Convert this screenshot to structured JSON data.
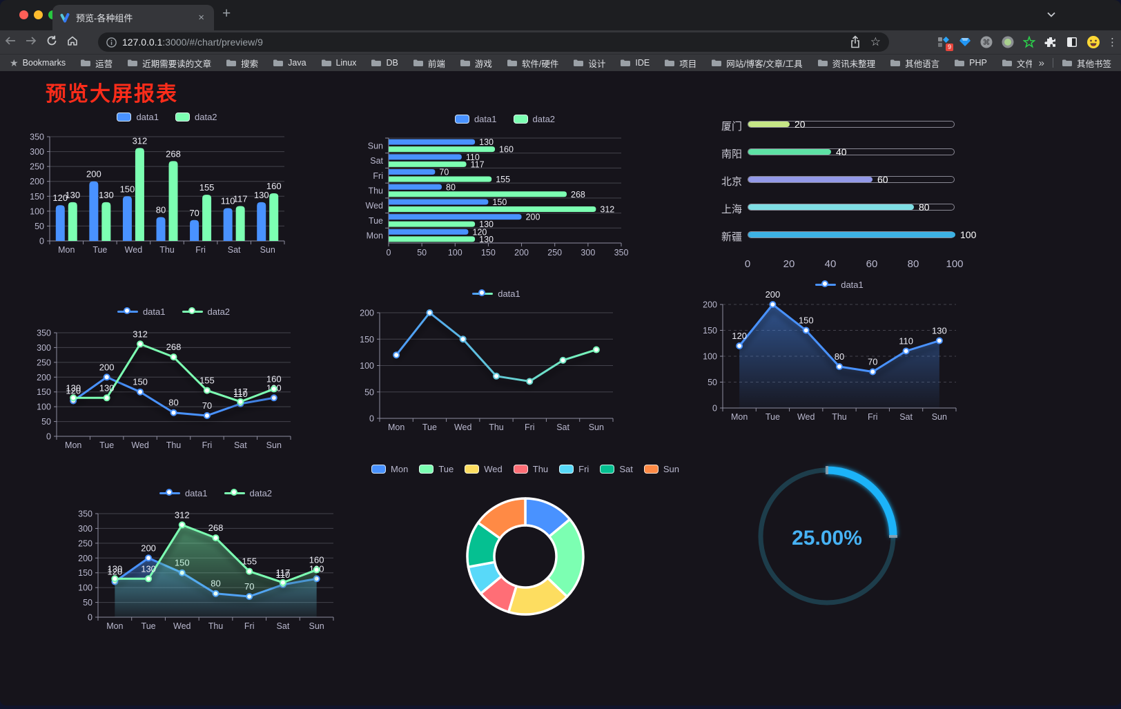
{
  "browser": {
    "tab_title": "预览-各种组件",
    "close_glyph": "×",
    "new_tab_glyph": "+",
    "url_host": "127.0.0.1",
    "url_rest": ":3000/#/chart/preview/9",
    "bookmarks_root": "Bookmarks",
    "bookmarks": [
      "运营",
      "近期需要读的文章",
      "搜索",
      "Java",
      "Linux",
      "DB",
      "前端",
      "游戏",
      "软件/硬件",
      "设计",
      "IDE",
      "项目",
      "网站/博客/文章/工具",
      "资讯未整理",
      "其他语言",
      "PHP",
      "文件服务器"
    ],
    "bookmarks_overflow_glyph": "»",
    "other_bookmarks": "其他书签",
    "extension_badge": "9"
  },
  "page": {
    "title": "预览大屏报表",
    "title_color": "#fb2c1a"
  },
  "palette": {
    "blue": "#4992ff",
    "green": "#7cffb2",
    "yellow": "#fddd60",
    "red": "#ff6e76",
    "lightblue": "#58d9f9",
    "teal": "#05c091",
    "orange": "#ff8a45",
    "axis_text": "#b9b8ce",
    "grid_line": "#44434d",
    "axis_line": "#8f8ea0",
    "value_label": "#ececf4"
  },
  "chart_data": [
    {
      "id": "bar-vertical",
      "type": "bar",
      "categories": [
        "Mon",
        "Tue",
        "Wed",
        "Thu",
        "Fri",
        "Sat",
        "Sun"
      ],
      "series": [
        {
          "name": "data1",
          "color": "#4992ff",
          "values": [
            120,
            200,
            150,
            80,
            70,
            110,
            130
          ]
        },
        {
          "name": "data2",
          "color": "#7cffb2",
          "values": [
            130,
            130,
            312,
            268,
            155,
            117,
            160
          ]
        }
      ],
      "ylim": [
        0,
        350
      ],
      "ytick": 50,
      "labels": true,
      "legend_position": "top",
      "grid": true
    },
    {
      "id": "bar-horizontal",
      "type": "bar",
      "orientation": "horizontal",
      "categories": [
        "Mon",
        "Tue",
        "Wed",
        "Thu",
        "Fri",
        "Sat",
        "Sun"
      ],
      "series": [
        {
          "name": "data1",
          "color": "#4992ff",
          "values": [
            120,
            200,
            150,
            80,
            70,
            110,
            130
          ]
        },
        {
          "name": "data2",
          "color": "#7cffb2",
          "values": [
            130,
            130,
            312,
            268,
            155,
            117,
            160
          ]
        }
      ],
      "xlim": [
        0,
        350
      ],
      "xtick": 50,
      "labels": true,
      "legend_position": "top",
      "grid": true
    },
    {
      "id": "progress",
      "type": "bar",
      "style": "progress-pills",
      "rows": [
        {
          "label": "厦门",
          "value": 20,
          "color": "#c6e786"
        },
        {
          "label": "南阳",
          "value": 40,
          "color": "#5ee2a5"
        },
        {
          "label": "北京",
          "value": 60,
          "color": "#9399e8"
        },
        {
          "label": "上海",
          "value": 80,
          "color": "#7edee4"
        },
        {
          "label": "新疆",
          "value": 100,
          "color": "#3cb1e3"
        }
      ],
      "xlim": [
        0,
        100
      ],
      "xticks": [
        0,
        20,
        40,
        60,
        80,
        100
      ]
    },
    {
      "id": "line-two",
      "type": "line",
      "categories": [
        "Mon",
        "Tue",
        "Wed",
        "Thu",
        "Fri",
        "Sat",
        "Sun"
      ],
      "series": [
        {
          "name": "data1",
          "color": "#4992ff",
          "values": [
            120,
            200,
            150,
            80,
            70,
            110,
            130
          ]
        },
        {
          "name": "data2",
          "color": "#7cffb2",
          "values": [
            130,
            130,
            312,
            268,
            155,
            117,
            160
          ]
        }
      ],
      "ylim": [
        0,
        350
      ],
      "ytick": 50,
      "labels": true,
      "markers": true,
      "legend_position": "top",
      "grid": true
    },
    {
      "id": "line-gradient",
      "type": "line",
      "categories": [
        "Mon",
        "Tue",
        "Wed",
        "Thu",
        "Fri",
        "Sat",
        "Sun"
      ],
      "series": [
        {
          "name": "data1",
          "gradient": [
            "#4992ff",
            "#7cffb2"
          ],
          "values": [
            120,
            200,
            150,
            80,
            70,
            110,
            130
          ]
        }
      ],
      "ylim": [
        0,
        200
      ],
      "ytick": 50,
      "labels": false,
      "markers": true,
      "legend_position": "top",
      "grid": true
    },
    {
      "id": "area-one",
      "type": "area",
      "categories": [
        "Mon",
        "Tue",
        "Wed",
        "Thu",
        "Fri",
        "Sat",
        "Sun"
      ],
      "series": [
        {
          "name": "data1",
          "color": "#4992ff",
          "values": [
            120,
            200,
            150,
            80,
            70,
            110,
            130
          ],
          "area": true
        }
      ],
      "ylim": [
        0,
        200
      ],
      "ytick": 50,
      "labels": true,
      "markers": true,
      "legend_position": "top",
      "grid": true,
      "grid_dash": true
    },
    {
      "id": "area-two",
      "type": "area",
      "categories": [
        "Mon",
        "Tue",
        "Wed",
        "Thu",
        "Fri",
        "Sat",
        "Sun"
      ],
      "series": [
        {
          "name": "data1",
          "color": "#4992ff",
          "values": [
            120,
            200,
            150,
            80,
            70,
            110,
            130
          ],
          "area": true
        },
        {
          "name": "data2",
          "color": "#7cffb2",
          "values": [
            130,
            130,
            312,
            268,
            155,
            117,
            160
          ],
          "area": true
        }
      ],
      "ylim": [
        0,
        350
      ],
      "ytick": 50,
      "labels": true,
      "markers": true,
      "legend_position": "top",
      "grid": true
    },
    {
      "id": "donut",
      "type": "pie",
      "legend_position": "top",
      "slices": [
        {
          "name": "Mon",
          "value": 120,
          "color": "#4992ff"
        },
        {
          "name": "Tue",
          "value": 200,
          "color": "#7cffb2"
        },
        {
          "name": "Wed",
          "value": 150,
          "color": "#fddd60"
        },
        {
          "name": "Thu",
          "value": 80,
          "color": "#ff6e76"
        },
        {
          "name": "Fri",
          "value": 70,
          "color": "#58d9f9"
        },
        {
          "name": "Sat",
          "value": 110,
          "color": "#05c091"
        },
        {
          "name": "Sun",
          "value": 130,
          "color": "#ff8a45"
        }
      ]
    },
    {
      "id": "gauge",
      "type": "gauge",
      "value": 25,
      "max": 100,
      "display": "25.00%",
      "progress_color": "#1fb3f8",
      "track_color": "#1d3d4b",
      "text_color": "#47b2f4"
    }
  ]
}
